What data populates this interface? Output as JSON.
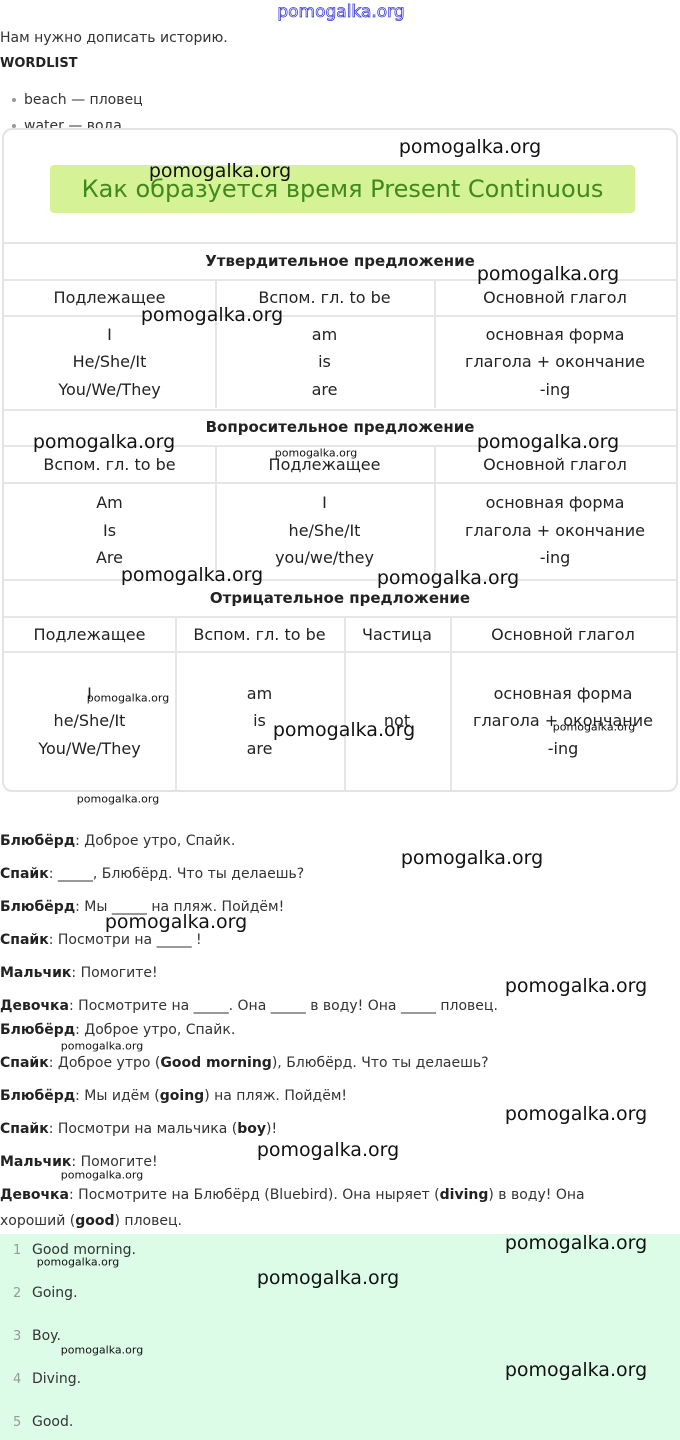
{
  "watermark": "pomogalka.org",
  "intro": "Нам нужно дописать историю.",
  "wordlist": {
    "title": "WORDLIST",
    "items": [
      "beach — пловец",
      "water — вода"
    ]
  },
  "table": {
    "title": "Как образуется время Present Continuous",
    "sections": [
      {
        "heading": "Утвердительное предложение",
        "columns": [
          "Подлежащее",
          "Вспом. гл. to be",
          "Основной глагол"
        ],
        "cells": [
          [
            "I",
            "He/She/It",
            "You/We/They"
          ],
          [
            "am",
            "is",
            "are"
          ],
          [
            "основная форма",
            "глагола + окончание",
            "-ing"
          ]
        ]
      },
      {
        "heading": "Вопросительное предложение",
        "columns": [
          "Вспом. гл. to be",
          "Подлежащее",
          "Основной глагол"
        ],
        "cells": [
          [
            "Am",
            "Is",
            "Are"
          ],
          [
            "I",
            "he/She/It",
            "you/we/they"
          ],
          [
            "основная форма",
            "глагола + окончание",
            "-ing"
          ]
        ]
      },
      {
        "heading": "Отрицательное предложение",
        "columns": [
          "Подлежащее",
          "Вспом. гл. to be",
          "Частица",
          "Основной глагол"
        ],
        "cells": [
          [
            "I",
            "he/She/It",
            "You/We/They"
          ],
          [
            "am",
            "is",
            "are"
          ],
          [
            "not"
          ],
          [
            "основная форма",
            "глагола + окончание",
            "-ing"
          ]
        ]
      }
    ]
  },
  "dialogue": [
    {
      "speaker": "Блюбёрд",
      "parts": [
        ": Доброе утро, Спайк."
      ]
    },
    {
      "speaker": "Спайк",
      "parts": [
        ": _____, Блюбёрд. Что ты делаешь?"
      ]
    },
    {
      "speaker": "Блюбёрд",
      "parts": [
        ": Мы _____ на пляж. Пойдём!"
      ]
    },
    {
      "speaker": "Спайк",
      "parts": [
        ": Посмотри на _____ !"
      ]
    },
    {
      "speaker": "Мальчик",
      "parts": [
        ": Помогите!"
      ]
    },
    {
      "speaker": "Девочка",
      "parts": [
        ": Посмотрите на _____. Она _____ в воду! Она _____ пловец."
      ]
    },
    {
      "speaker": "Блюбёрд",
      "parts": [
        ": Доброе утро, Спайк."
      ]
    },
    {
      "speaker": "Спайк",
      "parts": [
        ": Доброе утро (",
        {
          "bold": "Good morning"
        },
        "), Блюбёрд. Что ты делаешь?"
      ]
    },
    {
      "speaker": "Блюбёрд",
      "parts": [
        ": Мы идём (",
        {
          "bold": "going"
        },
        ") на пляж. Пойдём!"
      ]
    },
    {
      "speaker": "Спайк",
      "parts": [
        ": Посмотри на мальчика (",
        {
          "bold": "boy"
        },
        ")!"
      ]
    },
    {
      "speaker": "Мальчик",
      "parts": [
        ": Помогите!"
      ]
    },
    {
      "speaker": "Девочка",
      "parts": [
        ": Посмотрите на Блюбёрд (Bluebird). Она ныряет (",
        {
          "bold": "diving"
        },
        ") в воду! Она хороший (",
        {
          "bold": "good"
        },
        ") пловец."
      ]
    }
  ],
  "answers": [
    {
      "number": 1,
      "text": "Good morning."
    },
    {
      "number": 2,
      "text": "Going."
    },
    {
      "number": 3,
      "text": "Boy."
    },
    {
      "number": 4,
      "text": "Diving."
    },
    {
      "number": 5,
      "text": "Good."
    }
  ]
}
